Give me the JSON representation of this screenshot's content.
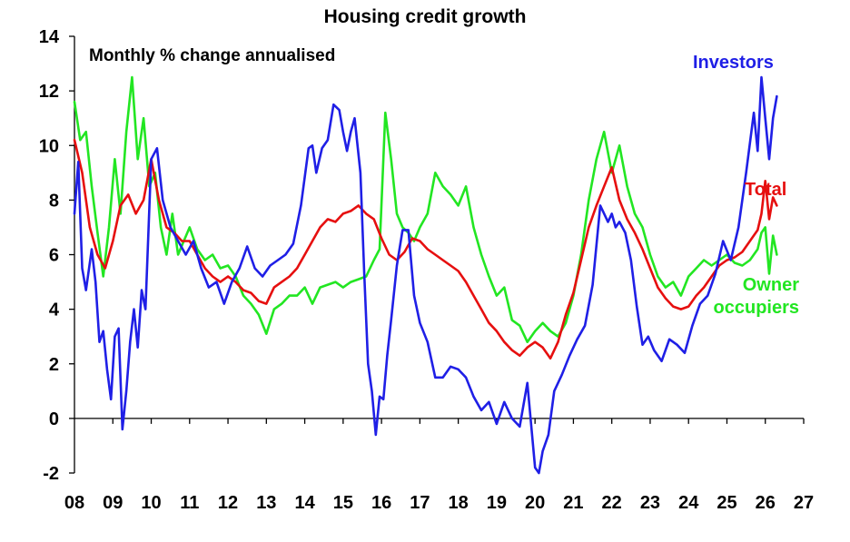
{
  "chart_data": {
    "type": "line",
    "title": "Housing credit growth",
    "subtitle": "Monthly % change annualised",
    "xlabel": "",
    "ylabel": "",
    "x_tick_labels": [
      "08",
      "09",
      "10",
      "11",
      "12",
      "13",
      "14",
      "15",
      "16",
      "17",
      "18",
      "19",
      "20",
      "21",
      "22",
      "23",
      "24",
      "25",
      "26",
      "27"
    ],
    "y_ticks": [
      -2,
      0,
      2,
      4,
      6,
      8,
      10,
      12,
      14
    ],
    "xlim": [
      2008.0,
      2027.0
    ],
    "ylim": [
      -2,
      14
    ],
    "grid": false,
    "legend": "direct labels",
    "series": [
      {
        "name": "Investors",
        "label_lines": [
          "Investors"
        ],
        "color": "#1f1fe6",
        "x": [
          2008.0,
          2008.1,
          2008.2,
          2008.3,
          2008.45,
          2008.55,
          2008.65,
          2008.75,
          2008.85,
          2008.95,
          2009.05,
          2009.15,
          2009.25,
          2009.35,
          2009.45,
          2009.55,
          2009.65,
          2009.75,
          2009.85,
          2010.0,
          2010.15,
          2010.3,
          2010.5,
          2010.7,
          2010.9,
          2011.1,
          2011.3,
          2011.5,
          2011.7,
          2011.9,
          2012.1,
          2012.3,
          2012.5,
          2012.7,
          2012.9,
          2013.1,
          2013.3,
          2013.5,
          2013.7,
          2013.9,
          2014.1,
          2014.2,
          2014.3,
          2014.45,
          2014.6,
          2014.75,
          2014.9,
          2015.0,
          2015.1,
          2015.2,
          2015.3,
          2015.45,
          2015.55,
          2015.65,
          2015.75,
          2015.85,
          2015.95,
          2016.05,
          2016.15,
          2016.25,
          2016.4,
          2016.55,
          2016.7,
          2016.85,
          2017.0,
          2017.2,
          2017.4,
          2017.6,
          2017.8,
          2018.0,
          2018.2,
          2018.4,
          2018.6,
          2018.8,
          2019.0,
          2019.2,
          2019.4,
          2019.6,
          2019.8,
          2020.0,
          2020.1,
          2020.2,
          2020.35,
          2020.5,
          2020.7,
          2020.9,
          2021.1,
          2021.3,
          2021.5,
          2021.7,
          2021.9,
          2022.0,
          2022.1,
          2022.2,
          2022.35,
          2022.5,
          2022.65,
          2022.8,
          2022.95,
          2023.1,
          2023.3,
          2023.5,
          2023.7,
          2023.9,
          2024.1,
          2024.3,
          2024.5,
          2024.7,
          2024.9,
          2025.1,
          2025.3,
          2025.5,
          2025.7,
          2025.8,
          2025.9,
          2026.0,
          2026.1,
          2026.2,
          2026.3
        ],
        "y": [
          7.5,
          9.4,
          5.5,
          4.7,
          6.2,
          5.0,
          2.8,
          3.2,
          1.8,
          0.7,
          3.0,
          3.3,
          -0.4,
          1.0,
          2.8,
          4.0,
          2.6,
          4.7,
          4.0,
          9.5,
          9.9,
          8.0,
          7.0,
          6.5,
          6.0,
          6.5,
          5.5,
          4.8,
          5.0,
          4.2,
          5.0,
          5.5,
          6.3,
          5.5,
          5.2,
          5.6,
          5.8,
          6.0,
          6.4,
          7.8,
          9.9,
          10.0,
          9.0,
          9.9,
          10.2,
          11.5,
          11.3,
          10.5,
          9.8,
          10.5,
          11.0,
          9.0,
          5.3,
          2.0,
          1.0,
          -0.6,
          0.8,
          0.7,
          2.3,
          3.6,
          5.6,
          6.9,
          6.9,
          4.5,
          3.5,
          2.8,
          1.5,
          1.5,
          1.9,
          1.8,
          1.5,
          0.8,
          0.3,
          0.6,
          -0.2,
          0.6,
          0.0,
          -0.3,
          1.3,
          -1.8,
          -2.0,
          -1.2,
          -0.6,
          1.0,
          1.6,
          2.3,
          2.9,
          3.4,
          4.9,
          7.8,
          7.2,
          7.5,
          7.0,
          7.2,
          6.8,
          5.8,
          4.1,
          2.7,
          3.0,
          2.5,
          2.1,
          2.9,
          2.7,
          2.4,
          3.4,
          4.2,
          4.5,
          5.3,
          6.5,
          5.8,
          7.0,
          9.0,
          11.2,
          9.8,
          12.5,
          11.0,
          9.5,
          11.0,
          11.8
        ]
      },
      {
        "name": "Total",
        "label_lines": [
          "Total"
        ],
        "color": "#e60f0f",
        "x": [
          2008.0,
          2008.2,
          2008.4,
          2008.6,
          2008.8,
          2009.0,
          2009.2,
          2009.4,
          2009.6,
          2009.8,
          2010.0,
          2010.2,
          2010.4,
          2010.6,
          2010.8,
          2011.0,
          2011.2,
          2011.4,
          2011.6,
          2011.8,
          2012.0,
          2012.2,
          2012.4,
          2012.6,
          2012.8,
          2013.0,
          2013.2,
          2013.4,
          2013.6,
          2013.8,
          2014.0,
          2014.2,
          2014.4,
          2014.6,
          2014.8,
          2015.0,
          2015.2,
          2015.4,
          2015.6,
          2015.8,
          2016.0,
          2016.2,
          2016.4,
          2016.6,
          2016.8,
          2017.0,
          2017.2,
          2017.4,
          2017.6,
          2017.8,
          2018.0,
          2018.2,
          2018.4,
          2018.6,
          2018.8,
          2019.0,
          2019.2,
          2019.4,
          2019.6,
          2019.8,
          2020.0,
          2020.2,
          2020.4,
          2020.6,
          2020.8,
          2021.0,
          2021.2,
          2021.4,
          2021.6,
          2021.8,
          2022.0,
          2022.2,
          2022.4,
          2022.6,
          2022.8,
          2023.0,
          2023.2,
          2023.4,
          2023.6,
          2023.8,
          2024.0,
          2024.2,
          2024.4,
          2024.6,
          2024.8,
          2025.0,
          2025.2,
          2025.4,
          2025.6,
          2025.8,
          2025.9,
          2026.0,
          2026.1,
          2026.2,
          2026.3
        ],
        "y": [
          10.2,
          9.0,
          7.0,
          6.0,
          5.5,
          6.5,
          7.8,
          8.2,
          7.5,
          8.0,
          9.5,
          8.0,
          7.0,
          6.8,
          6.5,
          6.5,
          6.0,
          5.5,
          5.2,
          5.0,
          5.2,
          5.0,
          4.7,
          4.6,
          4.3,
          4.2,
          4.8,
          5.0,
          5.2,
          5.5,
          6.0,
          6.5,
          7.0,
          7.3,
          7.2,
          7.5,
          7.6,
          7.8,
          7.5,
          7.3,
          6.6,
          6.0,
          5.8,
          6.1,
          6.6,
          6.5,
          6.2,
          6.0,
          5.8,
          5.6,
          5.4,
          5.0,
          4.5,
          4.0,
          3.5,
          3.2,
          2.8,
          2.5,
          2.3,
          2.6,
          2.8,
          2.6,
          2.2,
          2.8,
          3.8,
          4.6,
          5.8,
          7.0,
          7.8,
          8.5,
          9.2,
          8.0,
          7.3,
          6.8,
          6.2,
          5.5,
          4.8,
          4.4,
          4.1,
          4.0,
          4.1,
          4.5,
          4.8,
          5.2,
          5.6,
          5.8,
          5.9,
          6.1,
          6.5,
          6.9,
          7.5,
          8.7,
          7.3,
          8.1,
          7.8
        ]
      },
      {
        "name": "Owner occupiers",
        "label_lines": [
          "Owner",
          "occupiers"
        ],
        "color": "#22e622",
        "x": [
          2008.0,
          2008.15,
          2008.3,
          2008.45,
          2008.6,
          2008.75,
          2008.9,
          2009.05,
          2009.2,
          2009.35,
          2009.5,
          2009.65,
          2009.8,
          2009.95,
          2010.1,
          2010.25,
          2010.4,
          2010.55,
          2010.7,
          2010.85,
          2011.0,
          2011.2,
          2011.4,
          2011.6,
          2011.8,
          2012.0,
          2012.2,
          2012.4,
          2012.6,
          2012.8,
          2013.0,
          2013.2,
          2013.4,
          2013.6,
          2013.8,
          2014.0,
          2014.2,
          2014.4,
          2014.6,
          2014.8,
          2015.0,
          2015.2,
          2015.4,
          2015.6,
          2015.8,
          2015.95,
          2016.1,
          2016.25,
          2016.4,
          2016.55,
          2016.7,
          2016.85,
          2017.0,
          2017.2,
          2017.4,
          2017.6,
          2017.8,
          2018.0,
          2018.2,
          2018.4,
          2018.6,
          2018.8,
          2019.0,
          2019.2,
          2019.4,
          2019.6,
          2019.8,
          2020.0,
          2020.2,
          2020.4,
          2020.6,
          2020.8,
          2021.0,
          2021.2,
          2021.4,
          2021.6,
          2021.8,
          2022.0,
          2022.2,
          2022.4,
          2022.6,
          2022.8,
          2023.0,
          2023.2,
          2023.4,
          2023.6,
          2023.8,
          2024.0,
          2024.2,
          2024.4,
          2024.6,
          2024.8,
          2025.0,
          2025.2,
          2025.4,
          2025.6,
          2025.8,
          2025.9,
          2026.0,
          2026.1,
          2026.2,
          2026.3
        ],
        "y": [
          11.6,
          10.2,
          10.5,
          8.5,
          6.8,
          5.2,
          7.0,
          9.5,
          7.5,
          10.5,
          12.5,
          9.5,
          11.0,
          8.5,
          9.0,
          7.0,
          6.0,
          7.5,
          6.0,
          6.5,
          7.0,
          6.2,
          5.8,
          6.0,
          5.5,
          5.6,
          5.2,
          4.5,
          4.2,
          3.8,
          3.1,
          4.0,
          4.2,
          4.5,
          4.5,
          4.8,
          4.2,
          4.8,
          4.9,
          5.0,
          4.8,
          5.0,
          5.1,
          5.2,
          5.8,
          6.2,
          11.2,
          9.5,
          7.5,
          7.0,
          6.8,
          6.5,
          7.0,
          7.5,
          9.0,
          8.5,
          8.2,
          7.8,
          8.5,
          7.0,
          6.0,
          5.2,
          4.5,
          4.8,
          3.6,
          3.4,
          2.8,
          3.2,
          3.5,
          3.2,
          3.0,
          3.5,
          4.5,
          6.0,
          8.0,
          9.5,
          10.5,
          9.0,
          10.0,
          8.5,
          7.5,
          7.0,
          6.0,
          5.2,
          4.8,
          5.0,
          4.5,
          5.2,
          5.5,
          5.8,
          5.6,
          5.8,
          6.0,
          5.7,
          5.6,
          5.8,
          6.2,
          6.8,
          7.0,
          5.3,
          6.7,
          6.0
        ]
      }
    ]
  }
}
